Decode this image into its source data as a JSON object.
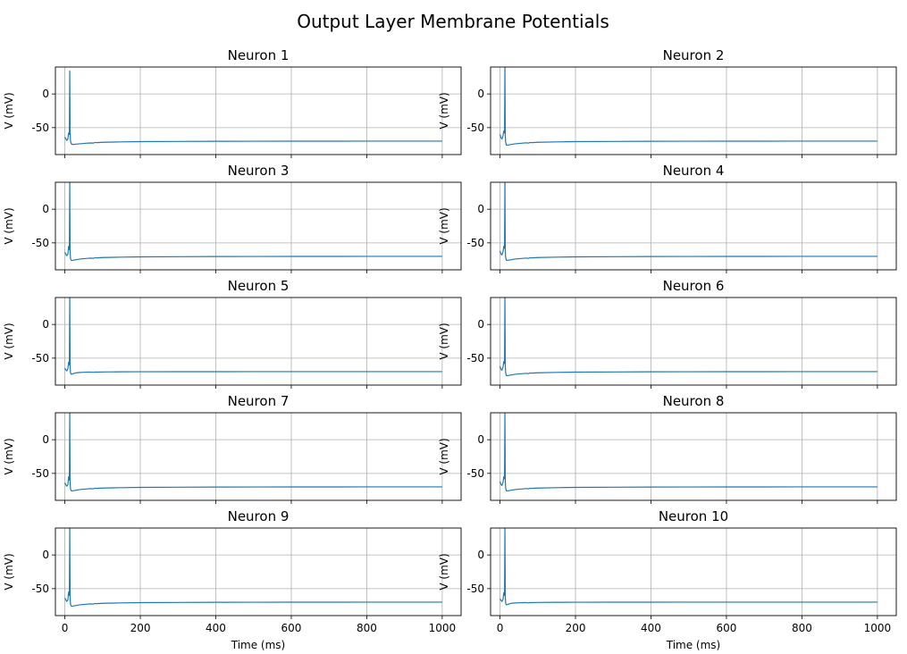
{
  "chart_data": {
    "type": "line",
    "title": "Output Layer Membrane Potentials",
    "xlabel": "Time (ms)",
    "ylabel": "V (mV)",
    "xlim": [
      -25,
      1050
    ],
    "ylim": [
      -90,
      40
    ],
    "xticks": [
      0,
      200,
      400,
      600,
      800,
      1000
    ],
    "yticks": [
      -50,
      0
    ],
    "grid": true,
    "line_color": "#1f77b4",
    "layout": {
      "rows": 5,
      "cols": 2,
      "sharex": true
    },
    "panels": [
      {
        "title": "Neuron 1",
        "series": [
          {
            "x": [
              0,
              2,
              5,
              8,
              10,
              12,
              13,
              14,
              15,
              17,
              20,
              25,
              30,
              40,
              50,
              60,
              70,
              75,
              80,
              85,
              100,
              150,
              200,
              300,
              400,
              500,
              600,
              700,
              800,
              900,
              1000
            ],
            "y": [
              -64,
              -66,
              -69,
              -67,
              -58,
              -60,
              34,
              -55,
              -70,
              -74,
              -75,
              -75,
              -74.5,
              -74,
              -73.5,
              -73,
              -72.8,
              -73,
              -72,
              -72.3,
              -71.8,
              -71.2,
              -70.8,
              -70.5,
              -70.3,
              -70.2,
              -70.1,
              -70.1,
              -70,
              -70,
              -70
            ]
          }
        ]
      },
      {
        "title": "Neuron 2",
        "series": [
          {
            "x": [
              0,
              2,
              5,
              8,
              10,
              12,
              13,
              14,
              15,
              17,
              20,
              25,
              30,
              40,
              50,
              60,
              70,
              75,
              80,
              85,
              100,
              150,
              200,
              300,
              400,
              500,
              600,
              700,
              800,
              900,
              1000
            ],
            "y": [
              -60,
              -64,
              -67,
              -62,
              -55,
              -58,
              40,
              -62,
              -72,
              -76,
              -76,
              -75.5,
              -75,
              -74,
              -73.5,
              -73,
              -72.5,
              -73,
              -72,
              -72.3,
              -71.8,
              -71.2,
              -70.8,
              -70.5,
              -70.3,
              -70.2,
              -70.1,
              -70.1,
              -70,
              -70,
              -70
            ]
          }
        ]
      },
      {
        "title": "Neuron 3",
        "series": [
          {
            "x": [
              0,
              2,
              5,
              8,
              10,
              12,
              13,
              14,
              15,
              17,
              20,
              25,
              30,
              40,
              50,
              60,
              70,
              75,
              80,
              85,
              100,
              150,
              200,
              300,
              400,
              500,
              600,
              700,
              800,
              900,
              1000
            ],
            "y": [
              -64,
              -66,
              -69,
              -67,
              -55,
              -60,
              40,
              -62,
              -73,
              -76,
              -76,
              -75.5,
              -75,
              -74,
              -73.5,
              -73,
              -72.6,
              -73,
              -72,
              -72.3,
              -71.8,
              -71.2,
              -70.8,
              -70.5,
              -70.3,
              -70.2,
              -70.1,
              -70.1,
              -70,
              -70,
              -70
            ]
          }
        ]
      },
      {
        "title": "Neuron 4",
        "series": [
          {
            "x": [
              0,
              2,
              5,
              8,
              10,
              12,
              13,
              14,
              15,
              17,
              20,
              25,
              30,
              40,
              50,
              60,
              70,
              75,
              80,
              85,
              100,
              150,
              200,
              300,
              400,
              500,
              600,
              700,
              800,
              900,
              1000
            ],
            "y": [
              -62,
              -66,
              -68,
              -63,
              -55,
              -58,
              40,
              -62,
              -72,
              -76,
              -76,
              -75.5,
              -75,
              -74,
              -73.5,
              -73,
              -72.5,
              -73,
              -72,
              -72.3,
              -71.8,
              -71.2,
              -70.8,
              -70.5,
              -70.3,
              -70.2,
              -70.1,
              -70.1,
              -70,
              -70,
              -70
            ]
          }
        ]
      },
      {
        "title": "Neuron 5",
        "series": [
          {
            "x": [
              0,
              2,
              5,
              8,
              10,
              12,
              13,
              14,
              15,
              17,
              20,
              25,
              30,
              40,
              50,
              60,
              70,
              75,
              80,
              85,
              100,
              150,
              200,
              300,
              400,
              500,
              600,
              700,
              800,
              900,
              1000
            ],
            "y": [
              -65,
              -67,
              -69,
              -66,
              -56,
              -60,
              40,
              -62,
              -72,
              -74,
              -73.5,
              -72.5,
              -71.8,
              -71.3,
              -71,
              -70.8,
              -70.7,
              -71.2,
              -70.6,
              -70.8,
              -70.5,
              -70.3,
              -70.2,
              -70.1,
              -70.1,
              -70,
              -70,
              -70,
              -70,
              -70,
              -70
            ]
          }
        ]
      },
      {
        "title": "Neuron 6",
        "series": [
          {
            "x": [
              0,
              2,
              5,
              8,
              10,
              12,
              13,
              14,
              15,
              17,
              20,
              25,
              30,
              40,
              50,
              60,
              70,
              75,
              80,
              85,
              100,
              150,
              200,
              300,
              400,
              500,
              600,
              700,
              800,
              900,
              1000
            ],
            "y": [
              -62,
              -66,
              -68,
              -63,
              -55,
              -58,
              40,
              -62,
              -72,
              -76,
              -76,
              -75.5,
              -75,
              -74,
              -73.5,
              -73,
              -72.5,
              -73,
              -72,
              -72.3,
              -71.8,
              -71.2,
              -70.8,
              -70.5,
              -70.3,
              -70.2,
              -70.1,
              -70.1,
              -70,
              -70,
              -70
            ]
          }
        ]
      },
      {
        "title": "Neuron 7",
        "series": [
          {
            "x": [
              0,
              2,
              5,
              8,
              10,
              12,
              13,
              14,
              15,
              17,
              20,
              25,
              30,
              40,
              50,
              60,
              70,
              75,
              80,
              85,
              100,
              150,
              200,
              300,
              400,
              500,
              600,
              700,
              800,
              900,
              1000
            ],
            "y": [
              -64,
              -66,
              -69,
              -67,
              -55,
              -60,
              40,
              -62,
              -73,
              -76,
              -76,
              -75.5,
              -75,
              -74,
              -73.5,
              -73,
              -72.6,
              -73,
              -72,
              -72.3,
              -71.8,
              -71.2,
              -70.8,
              -70.5,
              -70.3,
              -70.2,
              -70.1,
              -70.1,
              -70,
              -70,
              -70
            ]
          }
        ]
      },
      {
        "title": "Neuron 8",
        "series": [
          {
            "x": [
              0,
              2,
              5,
              8,
              10,
              12,
              13,
              14,
              15,
              17,
              20,
              25,
              30,
              40,
              50,
              60,
              70,
              75,
              80,
              85,
              100,
              150,
              200,
              300,
              400,
              500,
              600,
              700,
              800,
              900,
              1000
            ],
            "y": [
              -62,
              -66,
              -68,
              -63,
              -55,
              -58,
              40,
              -62,
              -72,
              -76,
              -76,
              -75.5,
              -75,
              -74,
              -73.5,
              -73,
              -72.5,
              -73,
              -72,
              -72.3,
              -71.8,
              -71.2,
              -70.8,
              -70.5,
              -70.3,
              -70.2,
              -70.1,
              -70.1,
              -70,
              -70,
              -70
            ]
          }
        ]
      },
      {
        "title": "Neuron 9",
        "series": [
          {
            "x": [
              0,
              2,
              5,
              8,
              10,
              12,
              13,
              14,
              15,
              17,
              20,
              25,
              30,
              40,
              50,
              60,
              70,
              75,
              80,
              85,
              100,
              150,
              200,
              300,
              400,
              500,
              600,
              700,
              800,
              900,
              1000
            ],
            "y": [
              -64,
              -66,
              -69,
              -67,
              -55,
              -60,
              40,
              -62,
              -73,
              -76,
              -76,
              -75.5,
              -75,
              -74,
              -73.5,
              -73,
              -72.6,
              -73,
              -72,
              -72.3,
              -71.8,
              -71.2,
              -70.8,
              -70.5,
              -70.3,
              -70.2,
              -70.1,
              -70.1,
              -70,
              -70,
              -70
            ]
          }
        ]
      },
      {
        "title": "Neuron 10",
        "series": [
          {
            "x": [
              0,
              2,
              5,
              8,
              10,
              12,
              13,
              14,
              15,
              17,
              20,
              25,
              30,
              40,
              50,
              60,
              70,
              75,
              80,
              85,
              100,
              150,
              200,
              300,
              400,
              500,
              600,
              700,
              800,
              900,
              1000
            ],
            "y": [
              -65,
              -67,
              -69,
              -66,
              -56,
              -60,
              40,
              -62,
              -72,
              -74,
              -73.5,
              -72.5,
              -71.8,
              -71.3,
              -71,
              -70.8,
              -70.7,
              -71.2,
              -70.6,
              -70.8,
              -70.5,
              -70.3,
              -70.2,
              -70.1,
              -70.1,
              -70,
              -70,
              -70,
              -70,
              -70,
              -70
            ]
          }
        ]
      }
    ]
  }
}
